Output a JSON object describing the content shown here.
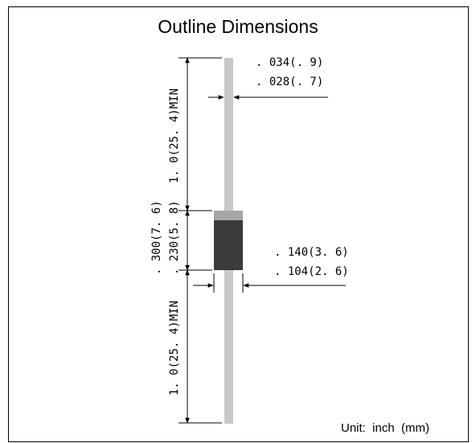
{
  "title": "Outline Dimensions",
  "labels": {
    "lead_dia_max": ". 034(. 9)",
    "lead_dia_min": ". 028(. 7)",
    "lead_length_top": "1. 0(25. 4)MIN",
    "lead_length_bottom": "1. 0(25. 4)MIN",
    "body_length_max": ". 300(7. 6)",
    "body_length_min": ". 230(5. 8)",
    "body_dia_max": ". 140(3. 6)",
    "body_dia_min": ". 104(2. 6)"
  },
  "unit_label": "Unit:  inch  (mm)",
  "colors": {
    "lead": "#c8c8c8",
    "body": "#3b3b3b",
    "cathode_band": "#a6a6a6",
    "line": "#000000"
  }
}
